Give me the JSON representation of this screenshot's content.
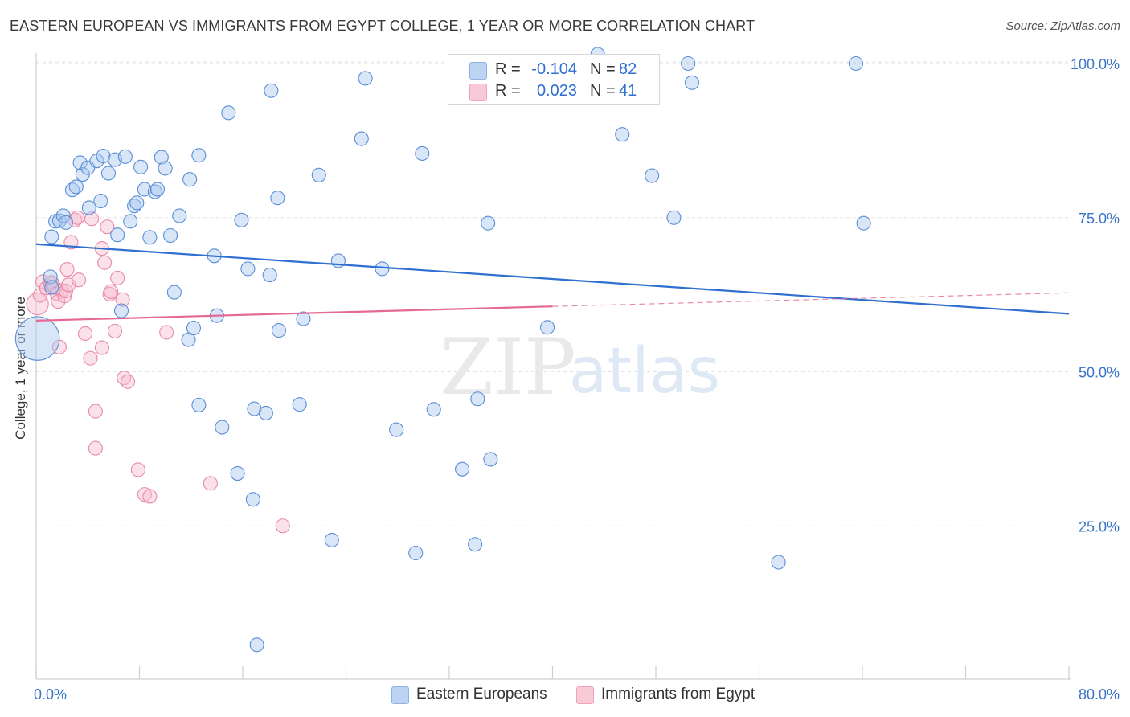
{
  "title": "EASTERN EUROPEAN VS IMMIGRANTS FROM EGYPT COLLEGE, 1 YEAR OR MORE CORRELATION CHART",
  "source": "Source: ZipAtlas.com",
  "watermark": {
    "zip": "ZIP",
    "atlas": "atlas"
  },
  "colors": {
    "blue_fill": "#a9c8ef",
    "blue_stroke": "#5a8fd6",
    "blue_line": "#2f6fcf",
    "pink_fill": "#f6bfd0",
    "pink_stroke": "#e88aa8",
    "pink_line": "#e46a93",
    "axis_text": "#3a74c9",
    "grid": "#e2e2e2"
  },
  "legend_top": {
    "rows": [
      {
        "r_label": "R =",
        "r_value": "-0.104",
        "n_label": "N =",
        "n_value": "82"
      },
      {
        "r_label": "R =",
        "r_value": "0.023",
        "n_label": "N =",
        "n_value": "41"
      }
    ]
  },
  "legend_bottom": {
    "items": [
      {
        "label": "Eastern Europeans"
      },
      {
        "label": "Immigrants from Egypt"
      }
    ]
  },
  "chart_data": {
    "type": "scatter",
    "title": "EASTERN EUROPEAN VS IMMIGRANTS FROM EGYPT COLLEGE, 1 YEAR OR MORE CORRELATION CHART",
    "xlabel": "",
    "ylabel": "College, 1 year or more",
    "xlim": [
      0,
      80
    ],
    "ylim": [
      0,
      102
    ],
    "x_tick_labels": [
      "0.0%",
      "80.0%"
    ],
    "y_ticks": [
      25,
      50,
      75,
      100
    ],
    "y_tick_labels": [
      "25.0%",
      "50.0%",
      "75.0%",
      "100.0%"
    ],
    "grid": true,
    "legend_position": "top-center",
    "series": [
      {
        "name": "Eastern Europeans",
        "R": -0.104,
        "N": 82,
        "trend": {
          "x": [
            0,
            80
          ],
          "y": [
            70.7,
            59.4
          ]
        },
        "points": [
          [
            1.1,
            65.4,
            1
          ],
          [
            1.2,
            63.7,
            1
          ],
          [
            0.1,
            55.4,
            3.2
          ],
          [
            1.2,
            71.9,
            1
          ],
          [
            1.5,
            74.4,
            1
          ],
          [
            1.8,
            74.5,
            1
          ],
          [
            2.1,
            75.3,
            1
          ],
          [
            2.3,
            74.2,
            1
          ],
          [
            2.8,
            79.5,
            1
          ],
          [
            3.1,
            80.0,
            1
          ],
          [
            3.4,
            83.9,
            1
          ],
          [
            3.6,
            82.0,
            1
          ],
          [
            4.0,
            83.1,
            1
          ],
          [
            4.1,
            76.6,
            1
          ],
          [
            4.7,
            84.2,
            1
          ],
          [
            5.0,
            77.7,
            1
          ],
          [
            5.2,
            85.0,
            1
          ],
          [
            5.6,
            82.2,
            1
          ],
          [
            6.1,
            84.4,
            1
          ],
          [
            6.3,
            72.2,
            1
          ],
          [
            6.6,
            59.9,
            1
          ],
          [
            6.9,
            84.9,
            1
          ],
          [
            7.3,
            74.4,
            1
          ],
          [
            7.6,
            76.9,
            1
          ],
          [
            7.8,
            77.4,
            1
          ],
          [
            8.1,
            83.2,
            1
          ],
          [
            8.4,
            79.6,
            1
          ],
          [
            8.8,
            71.8,
            1
          ],
          [
            9.2,
            79.2,
            1
          ],
          [
            9.4,
            79.6,
            1
          ],
          [
            9.7,
            84.8,
            1
          ],
          [
            10.0,
            83.0,
            1
          ],
          [
            10.4,
            72.1,
            1
          ],
          [
            10.7,
            62.9,
            1
          ],
          [
            11.1,
            75.3,
            1
          ],
          [
            11.8,
            55.2,
            1
          ],
          [
            11.9,
            81.2,
            1
          ],
          [
            12.2,
            57.1,
            1
          ],
          [
            12.6,
            85.1,
            1
          ],
          [
            12.6,
            44.6,
            1
          ],
          [
            13.8,
            68.8,
            1
          ],
          [
            14.0,
            59.1,
            1
          ],
          [
            14.4,
            41.0,
            1
          ],
          [
            14.9,
            92.0,
            1
          ],
          [
            15.6,
            33.5,
            1
          ],
          [
            15.9,
            74.6,
            1
          ],
          [
            16.4,
            66.7,
            1
          ],
          [
            16.8,
            29.3,
            1
          ],
          [
            16.9,
            44.0,
            1
          ],
          [
            17.1,
            5.7,
            1
          ],
          [
            17.8,
            43.3,
            1
          ],
          [
            18.1,
            65.7,
            1
          ],
          [
            18.2,
            95.6,
            1
          ],
          [
            18.7,
            78.2,
            1
          ],
          [
            18.8,
            56.7,
            1
          ],
          [
            20.4,
            44.7,
            1
          ],
          [
            20.7,
            58.6,
            1
          ],
          [
            21.9,
            81.9,
            1
          ],
          [
            22.9,
            22.7,
            1
          ],
          [
            23.4,
            68.0,
            1
          ],
          [
            25.2,
            87.8,
            1
          ],
          [
            25.5,
            97.6,
            1
          ],
          [
            26.8,
            66.7,
            1
          ],
          [
            27.9,
            40.6,
            1
          ],
          [
            29.4,
            20.6,
            1
          ],
          [
            29.9,
            85.4,
            1
          ],
          [
            30.8,
            43.9,
            1
          ],
          [
            33.0,
            34.2,
            1
          ],
          [
            34.0,
            22.0,
            1
          ],
          [
            34.2,
            45.6,
            1
          ],
          [
            35.0,
            74.1,
            1
          ],
          [
            35.2,
            35.8,
            1
          ],
          [
            39.6,
            57.2,
            1
          ],
          [
            45.4,
            88.5,
            1
          ],
          [
            47.7,
            81.8,
            1
          ],
          [
            49.4,
            75.0,
            1
          ],
          [
            50.5,
            100.0,
            1
          ],
          [
            50.8,
            96.9,
            1
          ],
          [
            57.5,
            19.1,
            1
          ],
          [
            63.5,
            100.0,
            1
          ],
          [
            64.1,
            74.1,
            1
          ],
          [
            43.5,
            101.5,
            1
          ]
        ]
      },
      {
        "name": "Immigrants from Egypt",
        "R": 0.023,
        "N": 41,
        "trend": {
          "x": [
            0,
            40
          ],
          "y": [
            58.3,
            60.6
          ]
        },
        "trend_dashed": {
          "x": [
            40,
            80
          ],
          "y": [
            60.6,
            62.8
          ]
        },
        "points": [
          [
            0.1,
            61.0,
            1.6
          ],
          [
            0.3,
            62.4,
            1
          ],
          [
            0.5,
            64.6,
            1
          ],
          [
            0.8,
            63.6,
            1
          ],
          [
            1.1,
            64.3,
            1
          ],
          [
            1.2,
            64.5,
            1
          ],
          [
            1.4,
            63.7,
            1
          ],
          [
            1.6,
            62.7,
            1
          ],
          [
            1.7,
            61.4,
            1
          ],
          [
            1.8,
            54.0,
            1
          ],
          [
            2.0,
            63.2,
            1
          ],
          [
            2.2,
            62.3,
            1
          ],
          [
            2.3,
            63.1,
            1
          ],
          [
            2.4,
            66.6,
            1
          ],
          [
            2.5,
            64.1,
            1
          ],
          [
            2.7,
            71.0,
            1
          ],
          [
            3.0,
            74.6,
            1
          ],
          [
            3.2,
            75.0,
            1
          ],
          [
            3.3,
            64.9,
            1
          ],
          [
            3.8,
            56.2,
            1
          ],
          [
            4.3,
            74.8,
            1
          ],
          [
            4.2,
            52.2,
            1
          ],
          [
            4.6,
            43.6,
            1
          ],
          [
            4.6,
            37.6,
            1
          ],
          [
            5.1,
            53.9,
            1
          ],
          [
            5.1,
            70.0,
            1
          ],
          [
            5.3,
            67.7,
            1
          ],
          [
            5.5,
            73.5,
            1
          ],
          [
            5.7,
            62.6,
            1
          ],
          [
            5.8,
            63.0,
            1
          ],
          [
            6.1,
            56.6,
            1
          ],
          [
            6.3,
            65.2,
            1
          ],
          [
            6.7,
            61.7,
            1
          ],
          [
            6.8,
            49.0,
            1
          ],
          [
            7.1,
            48.4,
            1
          ],
          [
            7.9,
            34.1,
            1
          ],
          [
            8.4,
            30.1,
            1
          ],
          [
            8.8,
            29.8,
            1
          ],
          [
            10.1,
            56.4,
            1
          ],
          [
            13.5,
            31.9,
            1
          ],
          [
            19.1,
            25.0,
            1
          ]
        ]
      }
    ]
  }
}
